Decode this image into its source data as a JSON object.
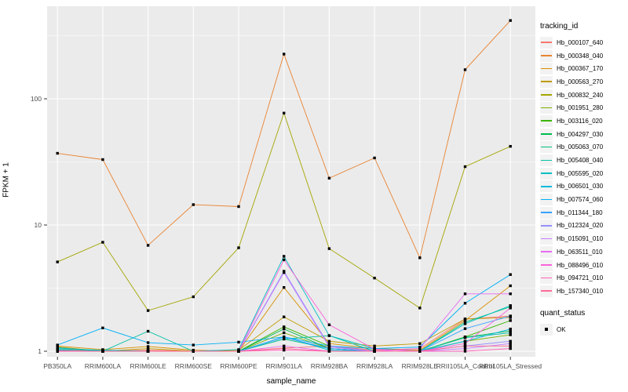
{
  "figure": {
    "x_axis_title": "sample_name",
    "y_axis_title": "FPKM + 1",
    "legend_tracking_title": "tracking_id",
    "legend_quant_title": "quant_status",
    "quant_ok_label": "OK"
  },
  "style": {
    "panel_bg": "#EBEBEB",
    "grid_color": "#FFFFFF",
    "tick_label_color": "#4D4D4D",
    "tick_mark_color": "#333333",
    "point_color": "#000000",
    "legend_key_bg": "#F2F2F2"
  },
  "chart_data": {
    "type": "line",
    "title": "",
    "xlabel": "sample_name",
    "ylabel": "FPKM + 1",
    "y_scale": "log10",
    "y_ticks": [
      1,
      10,
      100
    ],
    "y_minor_ticks": [
      3.162,
      31.62,
      316.2
    ],
    "ylim": [
      0.9,
      540
    ],
    "grid": true,
    "legend_position": "right",
    "point_marker": "black-square",
    "quant_status": {
      "label": "OK",
      "marker": "black-square"
    },
    "categories": [
      "PB350LA",
      "RRIM600LA",
      "RRIM600LE",
      "RRIM600SE",
      "RRIM600PE",
      "RRIM901LA",
      "RRIM928BA",
      "RRIM928LA",
      "RRIM928LE",
      "RRII105LA_Control",
      "RRII105LA_Stressed"
    ],
    "series": [
      {
        "name": "Hb_000107_640",
        "color": "#F8766D",
        "values": [
          1.05,
          1.0,
          1.02,
          1.0,
          1.0,
          1.06,
          1.1,
          1.02,
          1.05,
          1.8,
          1.9
        ]
      },
      {
        "name": "Hb_000348_040",
        "color": "#EA8331",
        "values": [
          37,
          33,
          6.9,
          14.5,
          14,
          226,
          23.5,
          34,
          5.5,
          170,
          417
        ]
      },
      {
        "name": "Hb_000367_170",
        "color": "#D89000",
        "values": [
          1.1,
          1.03,
          1.09,
          1.02,
          1.0,
          3.2,
          1.15,
          1.05,
          1.02,
          1.75,
          3.3
        ]
      },
      {
        "name": "Hb_000563_270",
        "color": "#C09B00",
        "values": [
          1.08,
          1.0,
          1.05,
          1.0,
          1.02,
          1.87,
          1.2,
          1.1,
          1.15,
          1.8,
          1.85
        ]
      },
      {
        "name": "Hb_000832_240",
        "color": "#A3A500",
        "values": [
          5.1,
          7.3,
          2.1,
          2.7,
          6.6,
          77,
          6.5,
          3.8,
          2.2,
          29,
          42
        ]
      },
      {
        "name": "Hb_001951_280",
        "color": "#7CAE00",
        "values": [
          1.0,
          1.0,
          1.0,
          1.0,
          1.0,
          1.4,
          1.05,
          1.0,
          1.0,
          1.2,
          1.35
        ]
      },
      {
        "name": "Hb_003116_020",
        "color": "#39B600",
        "values": [
          1.02,
          1.0,
          1.0,
          1.0,
          1.0,
          1.56,
          1.1,
          1.0,
          1.0,
          1.3,
          1.75
        ]
      },
      {
        "name": "Hb_004297_030",
        "color": "#00BB4E",
        "values": [
          1.0,
          1.0,
          1.0,
          1.0,
          1.0,
          1.5,
          1.05,
          1.0,
          1.0,
          1.29,
          1.45
        ]
      },
      {
        "name": "Hb_005063_070",
        "color": "#00BF7D",
        "values": [
          1.03,
          1.0,
          1.0,
          1.0,
          1.0,
          1.25,
          1.05,
          1.0,
          1.0,
          1.7,
          2.25
        ]
      },
      {
        "name": "Hb_005408_040",
        "color": "#00C1A3",
        "values": [
          1.07,
          1.0,
          1.44,
          1.0,
          1.0,
          1.25,
          1.33,
          1.0,
          1.0,
          1.28,
          1.4
        ]
      },
      {
        "name": "Hb_005595_020",
        "color": "#00BFC4",
        "values": [
          1.05,
          1.02,
          1.0,
          1.0,
          1.03,
          5.65,
          1.33,
          1.05,
          1.0,
          1.65,
          2.3
        ]
      },
      {
        "name": "Hb_006501_030",
        "color": "#00BAE0",
        "values": [
          1.02,
          1.0,
          1.0,
          1.0,
          1.0,
          1.3,
          1.02,
          1.0,
          1.0,
          1.2,
          1.5
        ]
      },
      {
        "name": "Hb_007574_060",
        "color": "#00B0F6",
        "values": [
          1.12,
          1.53,
          1.17,
          1.12,
          1.18,
          1.3,
          1.1,
          1.05,
          1.08,
          2.4,
          4.05
        ]
      },
      {
        "name": "Hb_011344_180",
        "color": "#35A2FF",
        "values": [
          1.0,
          1.0,
          1.0,
          1.0,
          1.0,
          1.29,
          1.05,
          1.0,
          1.0,
          1.51,
          1.9
        ]
      },
      {
        "name": "Hb_012324_020",
        "color": "#9590FF",
        "values": [
          1.0,
          1.0,
          1.0,
          1.0,
          1.0,
          4.3,
          1.1,
          1.0,
          1.0,
          1.1,
          1.2
        ]
      },
      {
        "name": "Hb_015091_010",
        "color": "#C77CFF",
        "values": [
          1.0,
          1.0,
          1.0,
          1.0,
          1.0,
          4.2,
          1.08,
          1.0,
          1.0,
          1.05,
          1.15
        ]
      },
      {
        "name": "Hb_063511_010",
        "color": "#E76BF3",
        "values": [
          1.0,
          1.0,
          1.0,
          1.0,
          1.0,
          1.1,
          1.0,
          1.0,
          1.05,
          2.85,
          2.85
        ]
      },
      {
        "name": "Hb_088496_010",
        "color": "#FA62DB",
        "values": [
          1.0,
          1.0,
          1.0,
          1.0,
          1.0,
          5.3,
          1.62,
          1.04,
          1.0,
          1.15,
          2.2
        ]
      },
      {
        "name": "Hb_094721_010",
        "color": "#FF62BC",
        "values": [
          1.0,
          1.0,
          1.0,
          1.0,
          1.0,
          1.02,
          1.0,
          1.0,
          1.0,
          1.0,
          1.05
        ]
      },
      {
        "name": "Hb_157340_010",
        "color": "#FF6A98",
        "values": [
          1.01,
          1.0,
          1.0,
          1.0,
          1.0,
          1.05,
          1.0,
          1.0,
          1.0,
          1.1,
          1.1
        ]
      }
    ]
  }
}
